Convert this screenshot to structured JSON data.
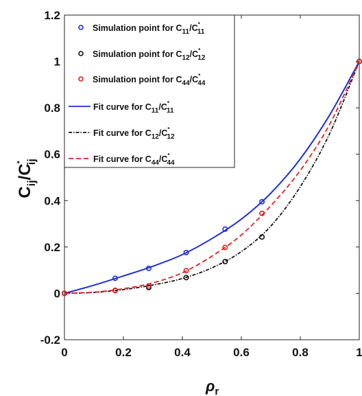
{
  "chart_data": {
    "type": "scatter",
    "xlabel": {
      "main": "ρ",
      "sub": "r"
    },
    "ylabel": {
      "main": "C",
      "sub": "ij",
      "sep": "/C",
      "sup": "*",
      "sub2": "ij"
    },
    "xlim": [
      0,
      1
    ],
    "ylim": [
      -0.2,
      1.2
    ],
    "xticks": [
      "0",
      "0.2",
      "0.4",
      "0.6",
      "0.8",
      "1"
    ],
    "yticks": [
      "-0.2",
      "0",
      "0.2",
      "0.4",
      "0.6",
      "0.8",
      "1",
      "1.2"
    ],
    "legend_position": "top-left",
    "series": [
      {
        "key": "sim11",
        "kind": "points",
        "color": "#1f2fd6",
        "label": {
          "pre": "Simulation point for C",
          "sub": "11",
          "mid": "/C",
          "sup": "*",
          "sub2": "11"
        },
        "x": [
          0,
          0.172,
          0.286,
          0.413,
          0.545,
          0.67,
          1.0
        ],
        "y": [
          0,
          0.065,
          0.108,
          0.176,
          0.277,
          0.395,
          1.0
        ]
      },
      {
        "key": "sim12",
        "kind": "points",
        "color": "#111111",
        "label": {
          "pre": "Simulation point for C",
          "sub": "12",
          "mid": "/C",
          "sup": "*",
          "sub2": "12"
        },
        "x": [
          0,
          0.172,
          0.286,
          0.413,
          0.545,
          0.67,
          1.0
        ],
        "y": [
          0,
          0.012,
          0.025,
          0.068,
          0.137,
          0.243,
          1.0
        ]
      },
      {
        "key": "sim44",
        "kind": "points",
        "color": "#e02020",
        "label": {
          "pre": "Simulation point for C",
          "sub": "44",
          "mid": "/C",
          "sup": "*",
          "sub2": "44"
        },
        "x": [
          0,
          0.172,
          0.286,
          0.413,
          0.545,
          0.67,
          1.0
        ],
        "y": [
          0,
          0.013,
          0.032,
          0.098,
          0.198,
          0.345,
          1.0
        ]
      },
      {
        "key": "fit11",
        "kind": "line",
        "color": "#1f2fd6",
        "dash": "solid",
        "label": {
          "pre": "Fit curve for C",
          "sub": "11",
          "mid": "/C",
          "sup": "*",
          "sub2": "11"
        },
        "x": [
          0,
          0.1,
          0.2,
          0.3,
          0.4,
          0.5,
          0.6,
          0.7,
          0.8,
          0.9,
          1.0
        ],
        "y": [
          0,
          0.035,
          0.075,
          0.117,
          0.167,
          0.236,
          0.32,
          0.432,
          0.58,
          0.77,
          1.0
        ]
      },
      {
        "key": "fit12",
        "kind": "line",
        "color": "#111111",
        "dash": "dashdot",
        "label": {
          "pre": "Fit curve for C",
          "sub": "12",
          "mid": "/C",
          "sup": "*",
          "sub2": "12"
        },
        "x": [
          0,
          0.1,
          0.2,
          0.3,
          0.4,
          0.5,
          0.6,
          0.7,
          0.8,
          0.9,
          1.0
        ],
        "y": [
          0,
          0.004,
          0.016,
          0.036,
          0.064,
          0.11,
          0.18,
          0.29,
          0.46,
          0.69,
          1.0
        ]
      },
      {
        "key": "fit44",
        "kind": "line",
        "color": "#e02020",
        "dash": "dashed",
        "label": {
          "pre": "Fit curve for C",
          "sub": "44",
          "mid": "/C",
          "sup": "*",
          "sub2": "44"
        },
        "x": [
          0,
          0.1,
          0.2,
          0.3,
          0.4,
          0.5,
          0.6,
          0.7,
          0.8,
          0.9,
          1.0
        ],
        "y": [
          0,
          0.005,
          0.02,
          0.045,
          0.089,
          0.16,
          0.252,
          0.378,
          0.53,
          0.73,
          1.0
        ]
      }
    ]
  }
}
